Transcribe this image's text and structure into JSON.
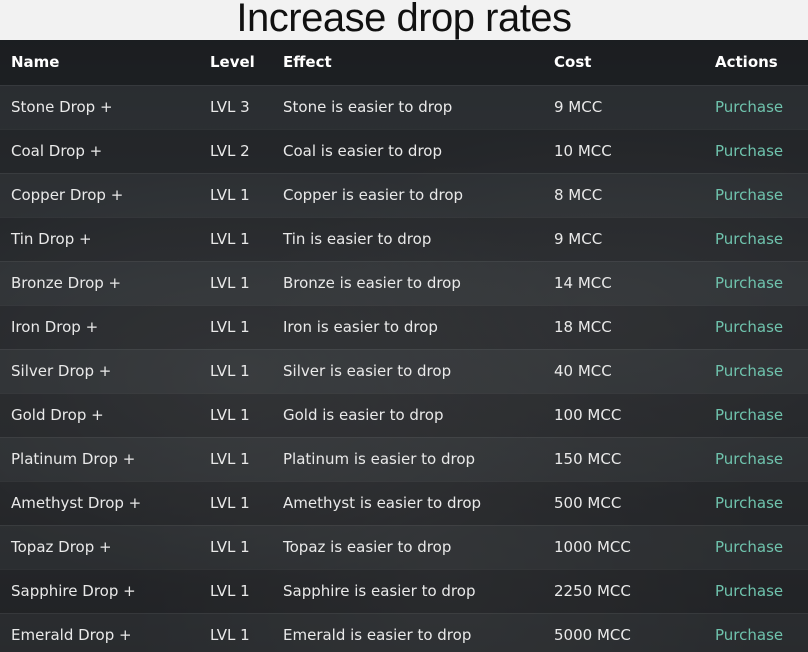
{
  "page": {
    "title": "Increase drop rates"
  },
  "table": {
    "headers": {
      "name": "Name",
      "level": "Level",
      "effect": "Effect",
      "cost": "Cost",
      "actions": "Actions"
    },
    "rows": [
      {
        "name": "Stone Drop +",
        "level": "LVL 3",
        "effect": "Stone is easier to drop",
        "cost": "9 MCC",
        "action": "Purchase"
      },
      {
        "name": "Coal Drop +",
        "level": "LVL 2",
        "effect": "Coal is easier to drop",
        "cost": "10 MCC",
        "action": "Purchase"
      },
      {
        "name": "Copper Drop +",
        "level": "LVL 1",
        "effect": "Copper is easier to drop",
        "cost": "8 MCC",
        "action": "Purchase"
      },
      {
        "name": "Tin Drop +",
        "level": "LVL 1",
        "effect": "Tin is easier to drop",
        "cost": "9 MCC",
        "action": "Purchase"
      },
      {
        "name": "Bronze Drop +",
        "level": "LVL 1",
        "effect": "Bronze is easier to drop",
        "cost": "14 MCC",
        "action": "Purchase"
      },
      {
        "name": "Iron Drop +",
        "level": "LVL 1",
        "effect": "Iron is easier to drop",
        "cost": "18 MCC",
        "action": "Purchase"
      },
      {
        "name": "Silver Drop +",
        "level": "LVL 1",
        "effect": "Silver is easier to drop",
        "cost": "40 MCC",
        "action": "Purchase"
      },
      {
        "name": "Gold Drop +",
        "level": "LVL 1",
        "effect": "Gold is easier to drop",
        "cost": "100 MCC",
        "action": "Purchase"
      },
      {
        "name": "Platinum Drop +",
        "level": "LVL 1",
        "effect": "Platinum is easier to drop",
        "cost": "150 MCC",
        "action": "Purchase"
      },
      {
        "name": "Amethyst Drop +",
        "level": "LVL 1",
        "effect": "Amethyst is easier to drop",
        "cost": "500 MCC",
        "action": "Purchase"
      },
      {
        "name": "Topaz Drop +",
        "level": "LVL 1",
        "effect": "Topaz is easier to drop",
        "cost": "1000 MCC",
        "action": "Purchase"
      },
      {
        "name": "Sapphire Drop +",
        "level": "LVL 1",
        "effect": "Sapphire is easier to drop",
        "cost": "2250 MCC",
        "action": "Purchase"
      },
      {
        "name": "Emerald Drop +",
        "level": "LVL 1",
        "effect": "Emerald is easier to drop",
        "cost": "5000 MCC",
        "action": "Purchase"
      }
    ]
  },
  "colors": {
    "link": "#6fc3ad",
    "header_bg": "#16191c",
    "text": "#e9e9e9"
  }
}
